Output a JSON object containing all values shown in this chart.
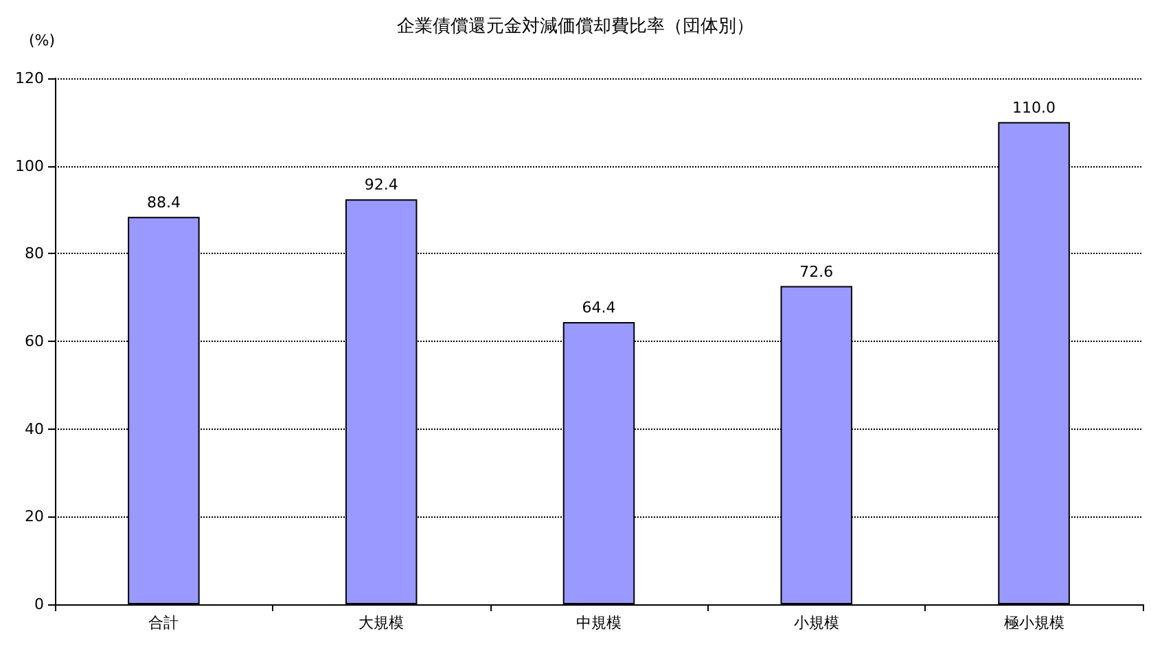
{
  "chart_data": {
    "type": "bar",
    "title": "企業債償還元金対減価償却費比率（団体別）",
    "ylabel": "(%)",
    "categories": [
      "合計",
      "大規模",
      "中規模",
      "小規模",
      "極小規模"
    ],
    "values": [
      88.4,
      92.4,
      64.4,
      72.6,
      110.0
    ],
    "value_labels": [
      "88.4",
      "92.4",
      "64.4",
      "72.6",
      "110.0"
    ],
    "color": "#9999ff",
    "ylim": [
      0,
      120
    ],
    "yticks": [
      0,
      20,
      40,
      60,
      80,
      100,
      120
    ],
    "grid": "y"
  }
}
